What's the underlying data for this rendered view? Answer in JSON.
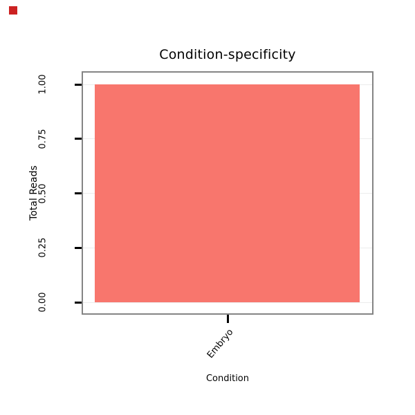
{
  "figure": {
    "background": "#ffffff",
    "corner_marker_color": "#cc2222"
  },
  "chart_data": {
    "type": "bar",
    "title": "Condition-specificity",
    "xlabel": "Condition",
    "ylabel": "Total Reads",
    "categories": [
      "Embryo"
    ],
    "values": [
      1.0
    ],
    "ylim": [
      0,
      1
    ],
    "yticks": [
      "0.00",
      "0.25",
      "0.50",
      "0.75",
      "1.00"
    ],
    "ytick_values": [
      0,
      0.25,
      0.5,
      0.75,
      1.0
    ],
    "bar_color": "#F8766D",
    "panel_border_color": "#848484",
    "gridline_color": "#ececec",
    "tick_color": "#000000",
    "grid": true,
    "legend": "none",
    "x_tick_label_angle": -50,
    "y_tick_label_angle": -90
  }
}
